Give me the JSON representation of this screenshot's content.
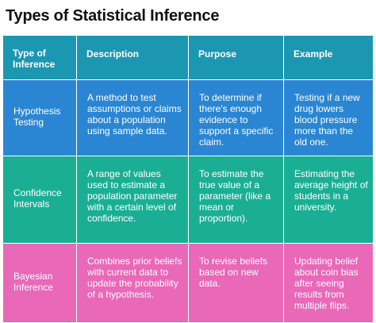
{
  "title": "Types of Statistical Inference",
  "table": {
    "headers": [
      "Type of Inference",
      "Description",
      "Purpose",
      "Example"
    ],
    "rows": [
      {
        "type": "Hypothesis Testing",
        "description": "A method to test assumptions or claims about a population using sample data.",
        "purpose": "To determine if there's enough evidence to support a specific claim.",
        "example": "Testing if a new drug lowers blood pressure more than the old one."
      },
      {
        "type": "Confidence Intervals",
        "description": "A range of values used to estimate a population parameter with a certain level of confidence.",
        "purpose": "To estimate the true value of a parameter (like a mean or proportion).",
        "example": "Estimating the average height of students in a university."
      },
      {
        "type": "Bayesian Inference",
        "description": "Combines prior beliefs with current data to update the probability of a hypothesis.",
        "purpose": "To revise beliefs based on new data.",
        "example": "Updating belief about coin bias after seeing results from multiple flips."
      }
    ]
  },
  "colors": {
    "header": "#1b97b2",
    "hypothesis_row": "#2a86d3",
    "confidence_row": "#1aaf94",
    "bayesian_row": "#e968b8"
  }
}
